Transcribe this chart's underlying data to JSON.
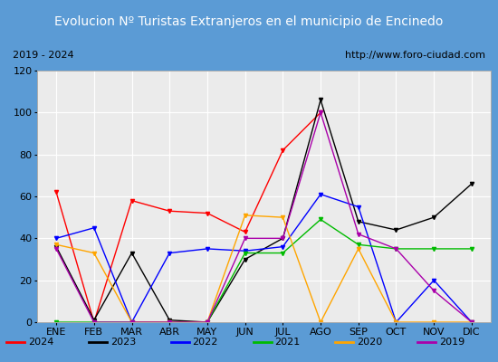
{
  "title": "Evolucion Nº Turistas Extranjeros en el municipio de Encinedo",
  "subtitle_left": "2019 - 2024",
  "subtitle_right": "http://www.foro-ciudad.com",
  "months": [
    "ENE",
    "FEB",
    "MAR",
    "ABR",
    "MAY",
    "JUN",
    "JUL",
    "AGO",
    "SEP",
    "OCT",
    "NOV",
    "DIC"
  ],
  "series": {
    "2024": {
      "color": "#ff0000",
      "values": [
        62,
        0,
        58,
        53,
        52,
        43,
        82,
        100,
        null,
        null,
        null,
        null
      ]
    },
    "2023": {
      "color": "#000000",
      "values": [
        36,
        1,
        33,
        1,
        0,
        30,
        40,
        106,
        48,
        44,
        50,
        66
      ]
    },
    "2022": {
      "color": "#0000ff",
      "values": [
        40,
        45,
        0,
        33,
        35,
        34,
        36,
        61,
        55,
        0,
        20,
        0
      ]
    },
    "2021": {
      "color": "#00bb00",
      "values": [
        0,
        0,
        0,
        0,
        0,
        33,
        33,
        49,
        37,
        35,
        35,
        35
      ]
    },
    "2020": {
      "color": "#ffa500",
      "values": [
        37,
        33,
        0,
        0,
        0,
        51,
        50,
        0,
        35,
        0,
        0,
        0
      ]
    },
    "2019": {
      "color": "#aa00aa",
      "values": [
        35,
        0,
        0,
        0,
        0,
        40,
        40,
        100,
        42,
        35,
        15,
        0
      ]
    }
  },
  "ylim": [
    0,
    120
  ],
  "yticks": [
    0,
    20,
    40,
    60,
    80,
    100,
    120
  ],
  "title_bg_color": "#4472c4",
  "title_text_color": "#ffffff",
  "plot_bg_color": "#ebebeb",
  "grid_color": "#ffffff",
  "border_color": "#5b9bd5",
  "title_fontsize": 10,
  "subtitle_fontsize": 8,
  "axis_fontsize": 8,
  "legend_fontsize": 8
}
